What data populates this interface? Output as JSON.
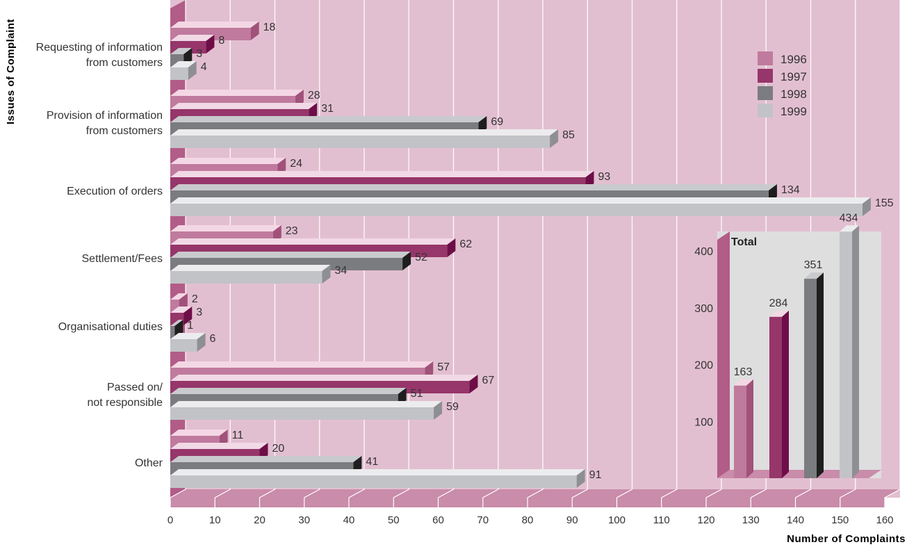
{
  "colors": {
    "background": "#e2bfd0",
    "wall": "#b25c88",
    "grid": "#ffffff",
    "text": "#333333",
    "series": [
      "#c07a9d",
      "#96366a",
      "#7b7c80",
      "#c2c3c7"
    ],
    "series_dark": [
      "#a0527a",
      "#6e0e48",
      "#1e1e1e",
      "#8e8f92"
    ],
    "series_top": [
      "#f4d7e4",
      "#f1d9e5",
      "#c9cacd",
      "#ececee"
    ],
    "inset_bg": "#dededf"
  },
  "chart_data": [
    {
      "type": "bar",
      "orientation": "horizontal",
      "3d": true,
      "xlabel": "Number of Complaints",
      "ylabel": "Issues of Complaint",
      "xlim": [
        0,
        160
      ],
      "xticks": [
        0,
        10,
        20,
        30,
        40,
        50,
        60,
        70,
        80,
        90,
        100,
        110,
        120,
        130,
        140,
        150,
        160
      ],
      "grid": "vertical",
      "legend_position": "top-right",
      "categories": [
        "Requesting of information\nfrom customers",
        "Provision of information\nfrom customers",
        "Execution of orders",
        "Settlement/Fees",
        "Organisational duties",
        "Passed on/\nnot responsible",
        "Other"
      ],
      "series": [
        {
          "name": "1996",
          "values": [
            18,
            28,
            24,
            23,
            2,
            57,
            11
          ]
        },
        {
          "name": "1997",
          "values": [
            8,
            31,
            93,
            62,
            3,
            67,
            20
          ]
        },
        {
          "name": "1998",
          "values": [
            3,
            69,
            134,
            52,
            1,
            51,
            41
          ]
        },
        {
          "name": "1999",
          "values": [
            4,
            85,
            155,
            34,
            6,
            59,
            91
          ]
        }
      ]
    },
    {
      "type": "bar",
      "orientation": "vertical",
      "3d": true,
      "title": "Total",
      "ylim": [
        0,
        460
      ],
      "yticks": [
        100,
        200,
        300,
        400
      ],
      "categories": [
        "1996",
        "1997",
        "1998",
        "1999"
      ],
      "values": [
        163,
        284,
        351,
        434
      ]
    }
  ]
}
